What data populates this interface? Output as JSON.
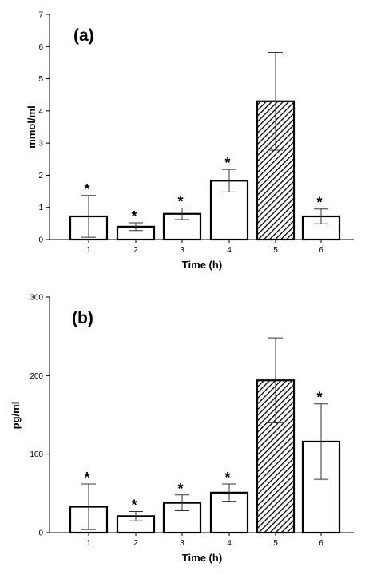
{
  "chart_data": [
    {
      "type": "bar",
      "panel_label": "(a)",
      "categories": [
        "1",
        "2",
        "3",
        "4",
        "5",
        "6"
      ],
      "values": [
        0.72,
        0.4,
        0.8,
        1.83,
        4.3,
        0.72
      ],
      "errors": [
        0.65,
        0.12,
        0.18,
        0.35,
        1.52,
        0.23
      ],
      "significant": [
        "*",
        "*",
        "*",
        "*",
        "",
        "*"
      ],
      "hatched": [
        false,
        false,
        false,
        false,
        true,
        false
      ],
      "xlabel": "Time (h)",
      "ylabel": "mmol/ml",
      "ylim": [
        0,
        7
      ],
      "yticks": [
        0,
        1,
        2,
        3,
        4,
        5,
        6,
        7
      ]
    },
    {
      "type": "bar",
      "panel_label": "(b)",
      "categories": [
        "1",
        "2",
        "3",
        "4",
        "5",
        "6"
      ],
      "values": [
        33,
        21,
        38,
        51,
        194,
        116
      ],
      "errors": [
        29,
        6,
        10,
        11,
        54,
        48
      ],
      "significant": [
        "*",
        "*",
        "*",
        "*",
        "",
        "*"
      ],
      "hatched": [
        false,
        false,
        false,
        false,
        true,
        false
      ],
      "xlabel": "Time (h)",
      "ylabel": "pg/ml",
      "ylim": [
        0,
        300
      ],
      "yticks": [
        0,
        100,
        200,
        300
      ]
    }
  ]
}
